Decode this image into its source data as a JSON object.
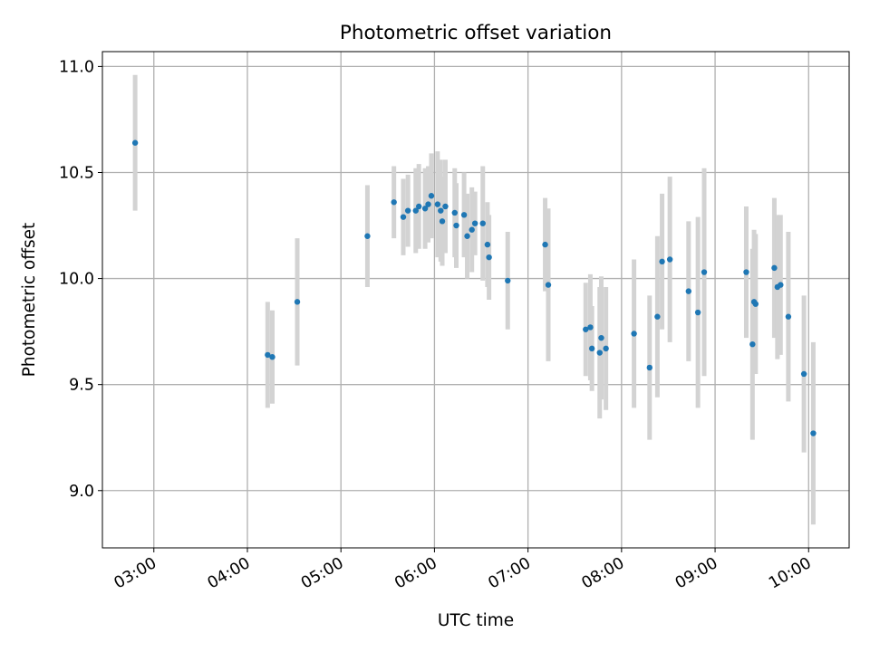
{
  "chart_data": {
    "type": "scatter",
    "title": "Photometric offset variation",
    "xlabel": "UTC time",
    "ylabel": "Photometric offset",
    "x_is_time": true,
    "xlim": [
      "02:27",
      "10:26"
    ],
    "ylim": [
      8.73,
      11.07
    ],
    "x_ticks": [
      "03:00",
      "04:00",
      "05:00",
      "06:00",
      "07:00",
      "08:00",
      "09:00",
      "10:00"
    ],
    "y_ticks": [
      9.0,
      9.5,
      10.0,
      10.5,
      11.0
    ],
    "y_tick_labels": [
      "9.0",
      "9.5",
      "10.0",
      "10.5",
      "11.0"
    ],
    "grid": true,
    "legend": "none",
    "colors": {
      "point": "#1f77b4",
      "errorbar": "#d3d3d3",
      "grid": "#b0b0b0",
      "axes": "#000000"
    },
    "series": [
      {
        "x": [
          "02:48",
          "04:13",
          "04:16",
          "04:32",
          "05:17",
          "05:34",
          "05:40",
          "05:43",
          "05:48",
          "05:50",
          "05:54",
          "05:56",
          "05:58",
          "06:02",
          "06:04",
          "06:05",
          "06:07",
          "06:13",
          "06:14",
          "06:19",
          "06:21",
          "06:24",
          "06:26",
          "06:31",
          "06:34",
          "06:35",
          "06:47",
          "07:11",
          "07:13",
          "07:37",
          "07:40",
          "07:41",
          "07:46",
          "07:47",
          "07:50",
          "08:08",
          "08:18",
          "08:23",
          "08:26",
          "08:31",
          "08:43",
          "08:49",
          "08:53",
          "09:20",
          "09:24",
          "09:25",
          "09:26",
          "09:38",
          "09:40",
          "09:42",
          "09:47",
          "09:57",
          "10:03"
        ],
        "y": [
          10.64,
          9.64,
          9.63,
          9.89,
          10.2,
          10.36,
          10.29,
          10.32,
          10.32,
          10.34,
          10.33,
          10.35,
          10.39,
          10.35,
          10.32,
          10.27,
          10.34,
          10.31,
          10.25,
          10.3,
          10.2,
          10.23,
          10.26,
          10.26,
          10.16,
          10.1,
          9.99,
          10.16,
          9.97,
          9.76,
          9.77,
          9.67,
          9.65,
          9.72,
          9.67,
          9.74,
          9.58,
          9.82,
          10.08,
          10.09,
          9.94,
          9.84,
          10.03,
          10.03,
          9.69,
          9.89,
          9.88,
          10.05,
          9.96,
          9.97,
          9.82,
          9.55,
          9.27
        ],
        "yerr": [
          0.32,
          0.25,
          0.22,
          0.3,
          0.24,
          0.17,
          0.18,
          0.17,
          0.2,
          0.2,
          0.19,
          0.18,
          0.2,
          0.25,
          0.24,
          0.21,
          0.22,
          0.21,
          0.2,
          0.2,
          0.2,
          0.2,
          0.15,
          0.27,
          0.2,
          0.2,
          0.23,
          0.22,
          0.36,
          0.22,
          0.25,
          0.2,
          0.31,
          0.29,
          0.29,
          0.35,
          0.34,
          0.38,
          0.32,
          0.39,
          0.33,
          0.45,
          0.49,
          0.31,
          0.45,
          0.34,
          0.33,
          0.33,
          0.34,
          0.33,
          0.4,
          0.37,
          0.43
        ]
      }
    ]
  }
}
